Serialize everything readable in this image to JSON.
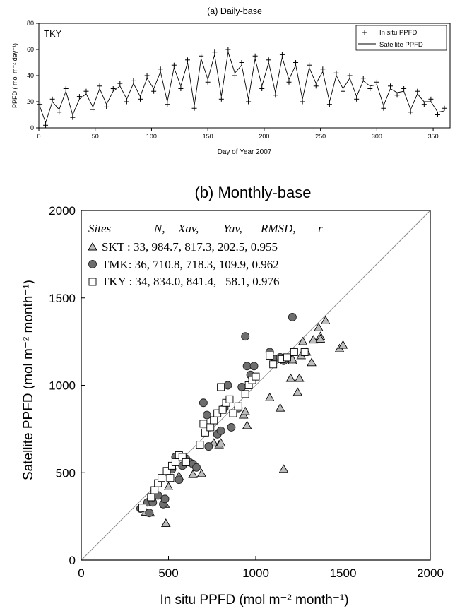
{
  "chart_data": [
    {
      "type": "line",
      "title": "(a) Daily-base",
      "site_label": "TKY",
      "xlabel": "Day of Year 2007",
      "ylabel": "PPFD ( mol m⁻² day⁻¹)",
      "xlim": [
        0,
        365
      ],
      "ylim": [
        0,
        80
      ],
      "xticks": [
        0,
        50,
        100,
        150,
        200,
        250,
        300,
        350
      ],
      "yticks": [
        0,
        20,
        40,
        60,
        80
      ],
      "legend": "top-right",
      "grid": false,
      "series": [
        {
          "name": "In situ PPFD",
          "style": "markers-plus",
          "x": [
            1,
            6,
            12,
            18,
            24,
            30,
            36,
            42,
            48,
            54,
            60,
            66,
            72,
            78,
            84,
            90,
            96,
            102,
            108,
            114,
            120,
            126,
            132,
            138,
            144,
            150,
            156,
            162,
            168,
            174,
            180,
            186,
            192,
            198,
            204,
            210,
            216,
            222,
            228,
            234,
            240,
            246,
            252,
            258,
            264,
            270,
            276,
            282,
            288,
            294,
            300,
            306,
            312,
            318,
            324,
            330,
            336,
            342,
            348,
            354,
            360
          ],
          "values": [
            18,
            2,
            22,
            12,
            30,
            8,
            24,
            28,
            14,
            32,
            16,
            30,
            34,
            20,
            36,
            22,
            40,
            28,
            45,
            18,
            48,
            30,
            52,
            15,
            55,
            35,
            58,
            22,
            60,
            40,
            50,
            20,
            55,
            30,
            52,
            25,
            56,
            35,
            50,
            20,
            48,
            32,
            45,
            18,
            42,
            28,
            40,
            22,
            38,
            30,
            35,
            15,
            32,
            25,
            30,
            12,
            28,
            18,
            22,
            10,
            15
          ]
        },
        {
          "name": "Satellite PPFD",
          "style": "line",
          "x": [
            1,
            6,
            12,
            18,
            24,
            30,
            36,
            42,
            48,
            54,
            60,
            66,
            72,
            78,
            84,
            90,
            96,
            102,
            108,
            114,
            120,
            126,
            132,
            138,
            144,
            150,
            156,
            162,
            168,
            174,
            180,
            186,
            192,
            198,
            204,
            210,
            216,
            222,
            228,
            234,
            240,
            246,
            252,
            258,
            264,
            270,
            276,
            282,
            288,
            294,
            300,
            306,
            312,
            318,
            324,
            330,
            336,
            342,
            348,
            354,
            360
          ],
          "values": [
            16,
            4,
            20,
            14,
            28,
            10,
            22,
            26,
            16,
            30,
            18,
            28,
            32,
            22,
            34,
            24,
            38,
            30,
            43,
            20,
            46,
            32,
            50,
            17,
            53,
            37,
            56,
            24,
            58,
            42,
            48,
            22,
            53,
            32,
            50,
            27,
            54,
            37,
            48,
            22,
            46,
            34,
            43,
            20,
            40,
            30,
            38,
            24,
            36,
            32,
            33,
            17,
            30,
            27,
            28,
            14,
            26,
            20,
            20,
            12,
            13
          ]
        }
      ]
    },
    {
      "type": "scatter",
      "title": "(b) Monthly-base",
      "xlabel": "In situ PPFD  (mol m⁻² month⁻¹)",
      "ylabel": "Satellite PPFD (mol m⁻² month⁻¹)",
      "xlim": [
        0,
        2000
      ],
      "ylim": [
        0,
        2000
      ],
      "xticks": [
        0,
        500,
        1000,
        1500,
        2000
      ],
      "yticks": [
        0,
        500,
        1000,
        1500,
        2000
      ],
      "reference_line": "1:1",
      "grid": false,
      "legend": "top-left",
      "legend_header": [
        "Sites",
        "N,",
        "Xav,",
        "Yav,",
        "RMSD,",
        "r"
      ],
      "series": [
        {
          "name": "SKT",
          "marker": "triangle",
          "legend_text": "SKT : 33, 984.7, 817.3, 202.5, 0.955",
          "stats": {
            "N": 33,
            "Xav": 984.7,
            "Yav": 817.3,
            "RMSD": 202.5,
            "r": 0.955
          },
          "points": [
            [
              370,
              275
            ],
            [
              395,
              270
            ],
            [
              480,
              320
            ],
            [
              485,
              210
            ],
            [
              500,
              420
            ],
            [
              560,
              480
            ],
            [
              640,
              490
            ],
            [
              690,
              495
            ],
            [
              760,
              670
            ],
            [
              790,
              660
            ],
            [
              800,
              670
            ],
            [
              930,
              830
            ],
            [
              950,
              770
            ],
            [
              1080,
              930
            ],
            [
              1140,
              870
            ],
            [
              1160,
              520
            ],
            [
              1200,
              1040
            ],
            [
              1210,
              1140
            ],
            [
              1240,
              960
            ],
            [
              1250,
              1040
            ],
            [
              1260,
              1170
            ],
            [
              1270,
              1250
            ],
            [
              1290,
              1190
            ],
            [
              1320,
              1130
            ],
            [
              1330,
              1260
            ],
            [
              1360,
              1330
            ],
            [
              1370,
              1280
            ],
            [
              1400,
              1370
            ],
            [
              1480,
              1210
            ],
            [
              1500,
              1230
            ],
            [
              1370,
              1265
            ],
            [
              1210,
              1150
            ],
            [
              940,
              850
            ]
          ]
        },
        {
          "name": "TMK",
          "marker": "circle",
          "legend_text": "TMK: 36, 710.8, 718.3, 109.9, 0.962",
          "stats": {
            "N": 36,
            "Xav": 710.8,
            "Yav": 718.3,
            "RMSD": 109.9,
            "r": 0.962
          },
          "points": [
            [
              340,
              295
            ],
            [
              380,
              330
            ],
            [
              390,
              270
            ],
            [
              410,
              330
            ],
            [
              410,
              360
            ],
            [
              440,
              370
            ],
            [
              470,
              320
            ],
            [
              480,
              350
            ],
            [
              520,
              520
            ],
            [
              540,
              590
            ],
            [
              560,
              460
            ],
            [
              560,
              590
            ],
            [
              580,
              540
            ],
            [
              600,
              580
            ],
            [
              620,
              560
            ],
            [
              640,
              550
            ],
            [
              660,
              530
            ],
            [
              700,
              900
            ],
            [
              720,
              830
            ],
            [
              730,
              650
            ],
            [
              780,
              720
            ],
            [
              800,
              740
            ],
            [
              820,
              870
            ],
            [
              840,
              1000
            ],
            [
              860,
              760
            ],
            [
              900,
              870
            ],
            [
              920,
              990
            ],
            [
              940,
              1280
            ],
            [
              950,
              1110
            ],
            [
              970,
              1060
            ],
            [
              990,
              1110
            ],
            [
              1080,
              1190
            ],
            [
              1110,
              1150
            ],
            [
              1140,
              1160
            ],
            [
              1160,
              1140
            ],
            [
              1210,
              1390
            ]
          ]
        },
        {
          "name": "TKY",
          "marker": "square",
          "legend_text": "TKY : 34, 834.0, 841.4,   58.1, 0.976",
          "stats": {
            "N": 34,
            "Xav": 834.0,
            "Yav": 841.4,
            "RMSD": 58.1,
            "r": 0.976
          },
          "points": [
            [
              350,
              300
            ],
            [
              400,
              360
            ],
            [
              420,
              400
            ],
            [
              440,
              440
            ],
            [
              460,
              470
            ],
            [
              490,
              510
            ],
            [
              510,
              470
            ],
            [
              520,
              540
            ],
            [
              540,
              560
            ],
            [
              560,
              600
            ],
            [
              580,
              590
            ],
            [
              600,
              560
            ],
            [
              680,
              660
            ],
            [
              700,
              780
            ],
            [
              710,
              730
            ],
            [
              740,
              760
            ],
            [
              760,
              800
            ],
            [
              780,
              840
            ],
            [
              800,
              990
            ],
            [
              810,
              860
            ],
            [
              830,
              900
            ],
            [
              850,
              920
            ],
            [
              870,
              840
            ],
            [
              900,
              880
            ],
            [
              940,
              950
            ],
            [
              960,
              1000
            ],
            [
              980,
              1030
            ],
            [
              1000,
              1050
            ],
            [
              1080,
              1170
            ],
            [
              1100,
              1120
            ],
            [
              1150,
              1150
            ],
            [
              1180,
              1160
            ],
            [
              1220,
              1190
            ],
            [
              1280,
              1190
            ]
          ]
        }
      ]
    }
  ]
}
